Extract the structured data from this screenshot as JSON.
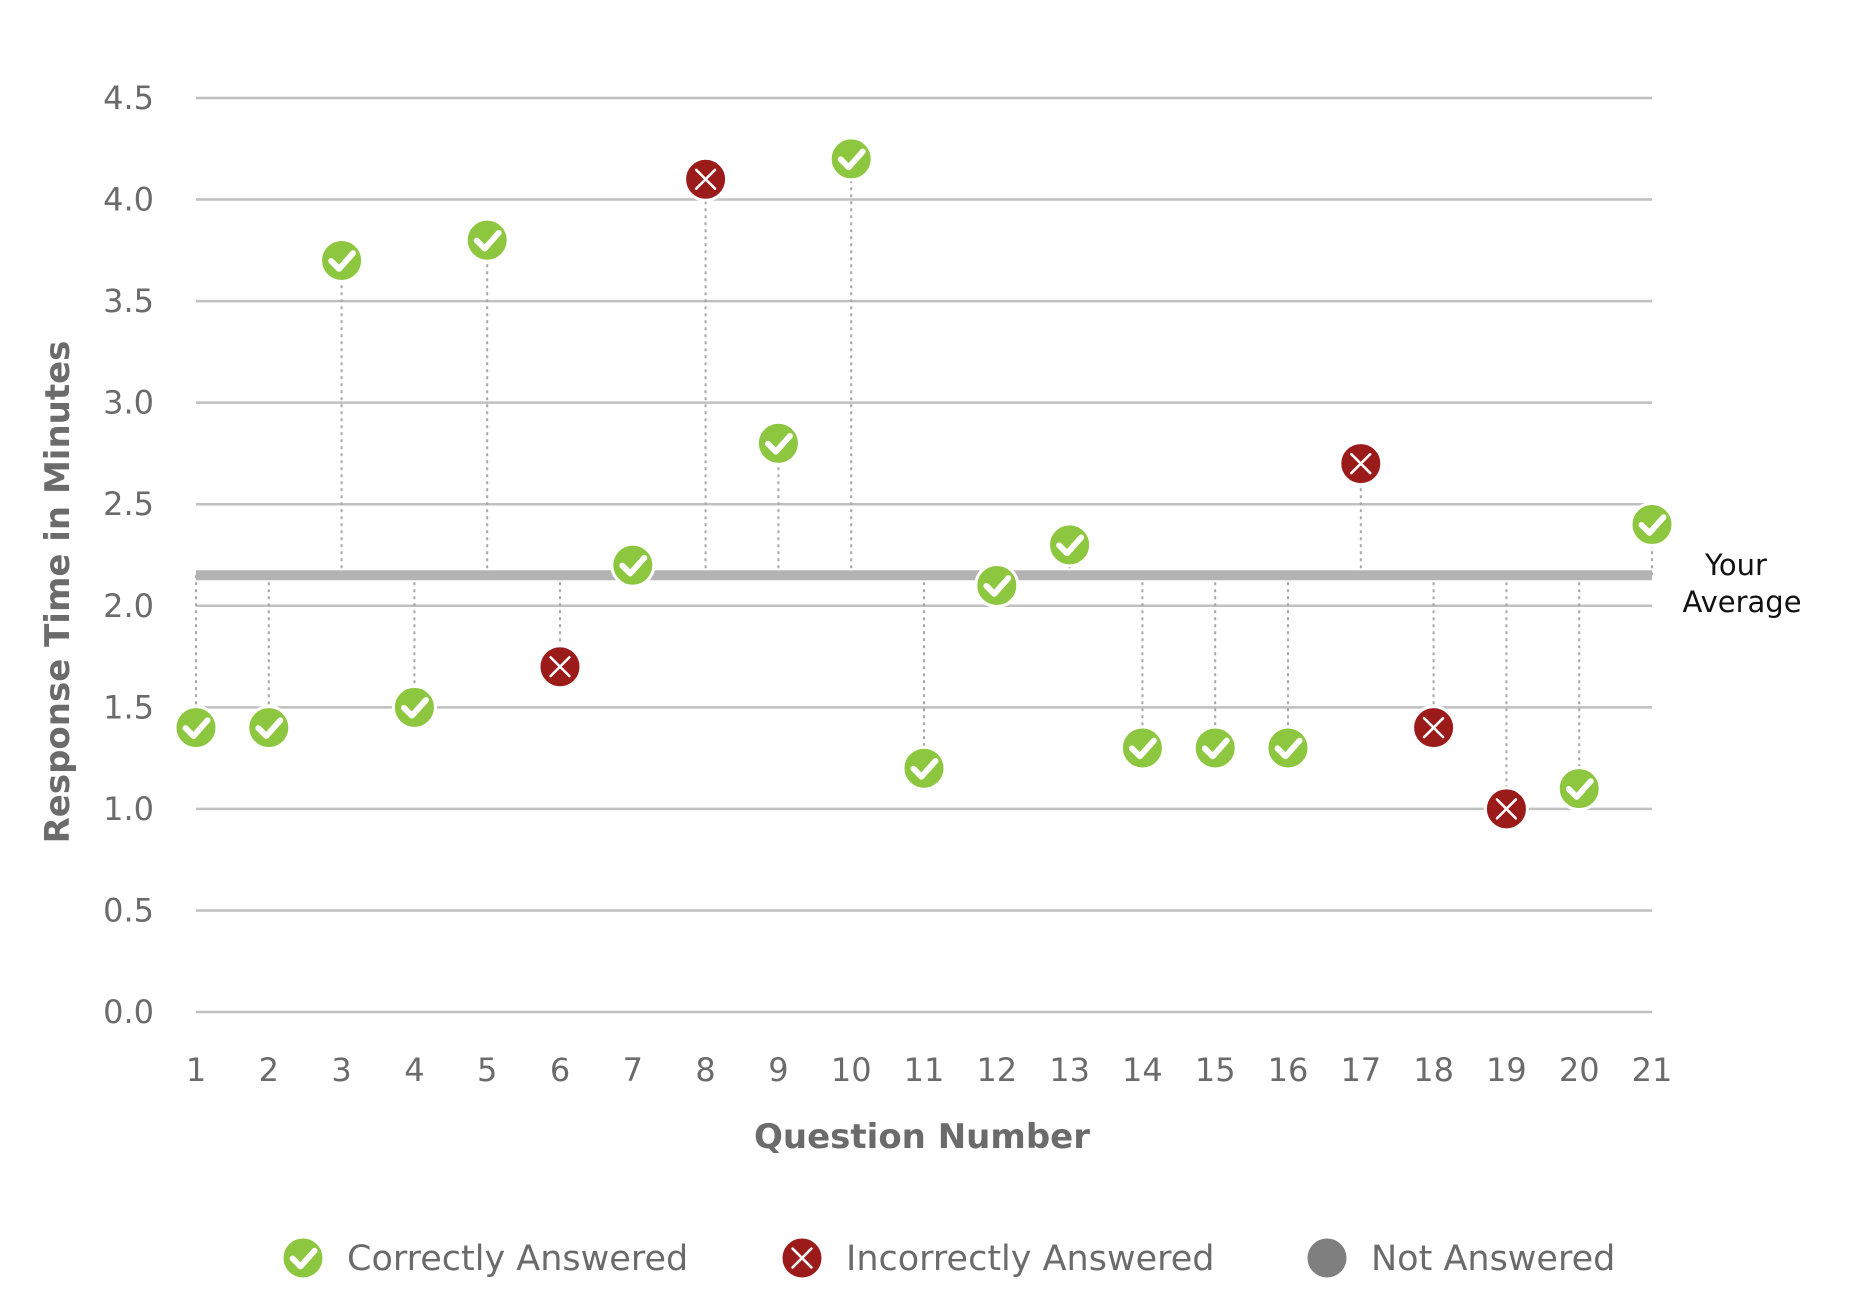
{
  "chart_data": {
    "type": "scatter",
    "title": "",
    "xlabel": "Question Number",
    "ylabel": "Response Time in Minutes",
    "x_ticks": [
      "1",
      "2",
      "3",
      "4",
      "5",
      "6",
      "7",
      "8",
      "9",
      "10",
      "11",
      "12",
      "13",
      "14",
      "15",
      "16",
      "17",
      "18",
      "19",
      "20",
      "21"
    ],
    "y_ticks": [
      "0.0",
      "0.5",
      "1.0",
      "1.5",
      "2.0",
      "2.5",
      "3.0",
      "3.5",
      "4.0",
      "4.5"
    ],
    "ylim": [
      0,
      4.5
    ],
    "xlim": [
      1,
      21
    ],
    "grid": true,
    "average": {
      "value": 2.15,
      "label_line1": "Your",
      "label_line2": "Average",
      "color": "#b3b3b3"
    },
    "points": [
      {
        "x": 1,
        "y": 1.4,
        "status": "correct"
      },
      {
        "x": 2,
        "y": 1.4,
        "status": "correct"
      },
      {
        "x": 3,
        "y": 3.7,
        "status": "correct"
      },
      {
        "x": 4,
        "y": 1.5,
        "status": "correct"
      },
      {
        "x": 5,
        "y": 3.8,
        "status": "correct"
      },
      {
        "x": 6,
        "y": 1.7,
        "status": "incorrect"
      },
      {
        "x": 7,
        "y": 2.2,
        "status": "correct"
      },
      {
        "x": 8,
        "y": 4.1,
        "status": "incorrect"
      },
      {
        "x": 9,
        "y": 2.8,
        "status": "correct"
      },
      {
        "x": 10,
        "y": 4.2,
        "status": "correct"
      },
      {
        "x": 11,
        "y": 1.2,
        "status": "correct"
      },
      {
        "x": 12,
        "y": 2.1,
        "status": "correct"
      },
      {
        "x": 13,
        "y": 2.3,
        "status": "correct"
      },
      {
        "x": 14,
        "y": 1.3,
        "status": "correct"
      },
      {
        "x": 15,
        "y": 1.3,
        "status": "correct"
      },
      {
        "x": 16,
        "y": 1.3,
        "status": "correct"
      },
      {
        "x": 17,
        "y": 2.7,
        "status": "incorrect"
      },
      {
        "x": 18,
        "y": 1.4,
        "status": "incorrect"
      },
      {
        "x": 19,
        "y": 1.0,
        "status": "incorrect"
      },
      {
        "x": 20,
        "y": 1.1,
        "status": "correct"
      },
      {
        "x": 21,
        "y": 2.4,
        "status": "correct"
      }
    ],
    "legend": [
      {
        "key": "correct",
        "label": "Correctly Answered",
        "color": "#8dc63f",
        "icon": "check-circle-icon"
      },
      {
        "key": "incorrect",
        "label": "Incorrectly Answered",
        "color": "#9b1b1b",
        "icon": "x-circle-icon"
      },
      {
        "key": "none",
        "label": "Not Answered",
        "color": "#7f7f7f",
        "icon": "gray-circle-icon"
      }
    ],
    "legend_position": "bottom",
    "colors": {
      "grid": "#c0c0c0",
      "connector": "#a8a8a8",
      "text": "#6b6b6b"
    }
  }
}
